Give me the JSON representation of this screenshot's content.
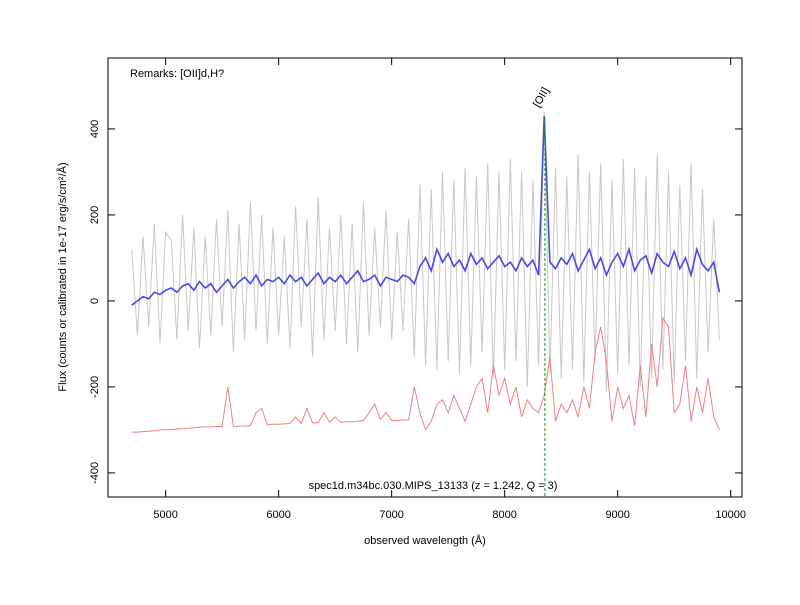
{
  "chart_data": {
    "type": "line",
    "xlabel": "observed wavelength (Å)",
    "ylabel": "Flux (counts or calibrated in 1e-17 erg/s/cm²/Å)",
    "remarks": "Remarks: [OII]d,H?",
    "caption": "spec1d.m34bc.030.MIPS_13133 (z = 1.242, Q = 3)",
    "xlim": [
      4490,
      10100
    ],
    "ylim": [
      -456,
      565
    ],
    "xticks": [
      5000,
      6000,
      7000,
      8000,
      9000,
      10000
    ],
    "yticks": [
      -400,
      -200,
      0,
      200,
      400
    ],
    "lines": [
      {
        "x": 8356,
        "label": "[OII]",
        "color": "#00a000"
      }
    ],
    "x": [
      4700,
      4750,
      4800,
      4850,
      4900,
      4950,
      5000,
      5050,
      5100,
      5150,
      5200,
      5250,
      5300,
      5350,
      5400,
      5450,
      5500,
      5550,
      5600,
      5650,
      5700,
      5750,
      5800,
      5850,
      5900,
      5950,
      6000,
      6050,
      6100,
      6150,
      6200,
      6250,
      6300,
      6350,
      6400,
      6450,
      6500,
      6550,
      6600,
      6650,
      6700,
      6750,
      6800,
      6850,
      6900,
      6950,
      7000,
      7050,
      7100,
      7150,
      7200,
      7250,
      7300,
      7350,
      7400,
      7450,
      7500,
      7550,
      7600,
      7650,
      7700,
      7750,
      7800,
      7850,
      7900,
      7950,
      8000,
      8050,
      8100,
      8150,
      8200,
      8250,
      8300,
      8350,
      8400,
      8450,
      8500,
      8550,
      8600,
      8650,
      8700,
      8750,
      8800,
      8850,
      8900,
      8950,
      9000,
      9050,
      9100,
      9150,
      9200,
      9250,
      9300,
      9350,
      9400,
      9450,
      9500,
      9550,
      9600,
      9650,
      9700,
      9750,
      9800,
      9850,
      9900
    ],
    "series": [
      {
        "color": "#c8c8c8",
        "values": [
          120,
          -80,
          150,
          -60,
          180,
          -100,
          160,
          140,
          -90,
          200,
          -70,
          170,
          -110,
          150,
          -80,
          190,
          -60,
          210,
          -120,
          180,
          -90,
          230,
          -70,
          200,
          -100,
          170,
          -80,
          150,
          -110,
          220,
          -60,
          190,
          -130,
          240,
          -90,
          170,
          -70,
          200,
          -100,
          180,
          -120,
          230,
          -80,
          170,
          -60,
          210,
          -90,
          160,
          -70,
          190,
          -130,
          270,
          -150,
          260,
          -160,
          300,
          -140,
          280,
          -170,
          310,
          -150,
          290,
          -120,
          320,
          -180,
          300,
          -160,
          330,
          -140,
          300,
          -200,
          280,
          -150,
          440,
          -170,
          310,
          -180,
          290,
          -160,
          340,
          -190,
          300,
          -140,
          320,
          -210,
          280,
          -170,
          330,
          -150,
          310,
          -200,
          290,
          -180,
          340,
          -160,
          300,
          -190,
          270,
          -140,
          320,
          -180,
          260,
          -120,
          190,
          -90
        ]
      },
      {
        "color": "#f08080",
        "values": [
          -305,
          -305,
          -304,
          -303,
          -302,
          -300,
          -300,
          -299,
          -298,
          -297,
          -296,
          -295,
          -294,
          -293,
          -293,
          -292,
          -292,
          -200,
          -292,
          -291,
          -291,
          -290,
          -260,
          -250,
          -288,
          -287,
          -287,
          -286,
          -285,
          -270,
          -285,
          -250,
          -284,
          -283,
          -260,
          -282,
          -270,
          -282,
          -281,
          -281,
          -280,
          -278,
          -260,
          -240,
          -275,
          -260,
          -278,
          -278,
          -277,
          -277,
          -200,
          -260,
          -300,
          -280,
          -240,
          -230,
          -260,
          -220,
          -250,
          -280,
          -240,
          -200,
          -180,
          -260,
          -150,
          -220,
          -180,
          -240,
          -200,
          -270,
          -230,
          -250,
          -260,
          -220,
          -130,
          -280,
          -240,
          -260,
          -230,
          -270,
          -200,
          -250,
          -120,
          -60,
          -140,
          -280,
          -200,
          -250,
          -220,
          -290,
          -150,
          -270,
          -100,
          -200,
          -40,
          -60,
          -260,
          -240,
          -150,
          -280,
          -200,
          -260,
          -180,
          -270,
          -300
        ]
      },
      {
        "color": "#4a4ae0",
        "values": [
          -10,
          0,
          10,
          5,
          20,
          15,
          25,
          30,
          20,
          35,
          40,
          25,
          45,
          30,
          40,
          20,
          35,
          50,
          30,
          45,
          55,
          40,
          60,
          35,
          50,
          45,
          55,
          40,
          60,
          45,
          55,
          35,
          50,
          65,
          40,
          55,
          45,
          60,
          40,
          55,
          70,
          45,
          50,
          60,
          35,
          55,
          50,
          45,
          60,
          55,
          40,
          80,
          100,
          70,
          120,
          90,
          110,
          80,
          95,
          70,
          110,
          85,
          100,
          75,
          90,
          105,
          80,
          90,
          70,
          100,
          80,
          95,
          60,
          430,
          90,
          75,
          100,
          85,
          110,
          70,
          95,
          120,
          75,
          100,
          60,
          90,
          110,
          80,
          120,
          70,
          95,
          105,
          65,
          110,
          90,
          80,
          115,
          75,
          100,
          60,
          120,
          85,
          70,
          90,
          20
        ]
      }
    ]
  }
}
